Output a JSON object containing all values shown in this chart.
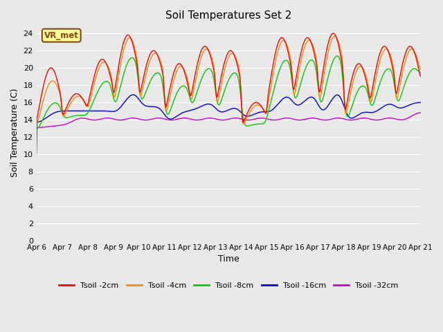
{
  "title": "Soil Temperatures Set 2",
  "xlabel": "Time",
  "ylabel": "Soil Temperature (C)",
  "ylim": [
    0,
    25
  ],
  "yticks": [
    0,
    2,
    4,
    6,
    8,
    10,
    12,
    14,
    16,
    18,
    20,
    22,
    24
  ],
  "fig_facecolor": "#e8e8e8",
  "ax_facecolor": "#e8e8e8",
  "series": {
    "Tsoil -2cm": {
      "color": "#ff0000",
      "lw": 1.0
    },
    "Tsoil -4cm": {
      "color": "#ff8800",
      "lw": 1.0
    },
    "Tsoil -8cm": {
      "color": "#00cc00",
      "lw": 1.0
    },
    "Tsoil -16cm": {
      "color": "#0000dd",
      "lw": 1.0
    },
    "Tsoil -32cm": {
      "color": "#cc00cc",
      "lw": 1.0
    }
  },
  "watermark": "VR_met",
  "xtick_labels": [
    "Apr 6",
    "Apr 7",
    "Apr 8",
    "Apr 9",
    "Apr 10",
    "Apr 11",
    "Apr 12",
    "Apr 13",
    "Apr 14",
    "Apr 15",
    "Apr 16",
    "Apr 17",
    "Apr 18",
    "Apr 19",
    "Apr 20",
    "Apr 21"
  ]
}
